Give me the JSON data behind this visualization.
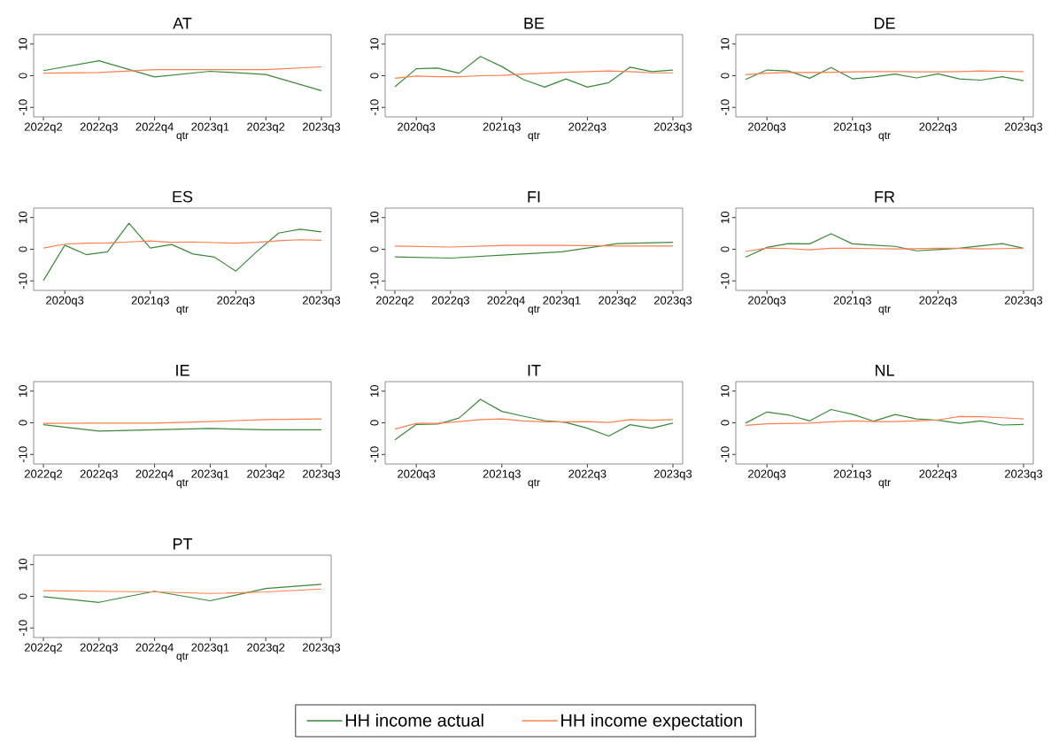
{
  "chart_data": [
    {
      "type": "line",
      "title": "AT",
      "xlabel": "qtr",
      "categories": [
        "2022q2",
        "2022q3",
        "2022q4",
        "2023q1",
        "2023q2",
        "2023q3"
      ],
      "ylim": [
        -13,
        13
      ],
      "yticks": [
        -10,
        0,
        10
      ],
      "series": [
        {
          "color": "#3a8a3a",
          "values": [
            1.6,
            4.7,
            -0.4,
            1.4,
            0.4,
            -4.7
          ]
        },
        {
          "color": "#ff7f50",
          "values": [
            0.8,
            1.0,
            1.9,
            1.9,
            1.9,
            2.8
          ]
        }
      ]
    },
    {
      "type": "line",
      "title": "BE",
      "xlabel": "qtr",
      "categories": [
        null,
        "2020q3",
        null,
        null,
        null,
        "2021q3",
        null,
        null,
        null,
        "2022q3",
        null,
        null,
        null,
        "2023q3"
      ],
      "ylim": [
        -13,
        13
      ],
      "yticks": [
        -10,
        0,
        10
      ],
      "series": [
        {
          "color": "#3a8a3a",
          "values": [
            -3.5,
            2.2,
            2.4,
            0.8,
            6.1,
            2.9,
            -1.2,
            -3.6,
            -1.0,
            -3.6,
            -2.2,
            2.7,
            1.3,
            1.8
          ]
        },
        {
          "color": "#ff7f50",
          "values": [
            -0.8,
            -0.1,
            -0.3,
            -0.3,
            0.0,
            0.1,
            0.5,
            0.8,
            1.1,
            1.3,
            1.5,
            1.3,
            0.9,
            0.9
          ]
        }
      ]
    },
    {
      "type": "line",
      "title": "DE",
      "xlabel": "qtr",
      "categories": [
        null,
        "2020q3",
        null,
        null,
        null,
        "2021q3",
        null,
        null,
        null,
        "2022q3",
        null,
        null,
        null,
        "2023q3"
      ],
      "ylim": [
        -13,
        13
      ],
      "yticks": [
        -10,
        0,
        10
      ],
      "series": [
        {
          "color": "#3a8a3a",
          "values": [
            -1.2,
            1.8,
            1.5,
            -0.8,
            2.6,
            -1.0,
            -0.4,
            0.5,
            -0.7,
            0.6,
            -1.0,
            -1.4,
            -0.3,
            -1.6
          ]
        },
        {
          "color": "#ff7f50",
          "values": [
            0.3,
            0.8,
            1.0,
            1.0,
            1.1,
            1.2,
            1.3,
            1.3,
            1.2,
            1.2,
            1.3,
            1.5,
            1.4,
            1.3
          ]
        }
      ]
    },
    {
      "type": "line",
      "title": "ES",
      "xlabel": "qtr",
      "categories": [
        null,
        "2020q3",
        null,
        null,
        null,
        "2021q3",
        null,
        null,
        null,
        "2022q3",
        null,
        null,
        null,
        "2023q3"
      ],
      "ylim": [
        -13,
        13
      ],
      "yticks": [
        -10,
        0,
        10
      ],
      "series": [
        {
          "color": "#3a8a3a",
          "values": [
            -9.9,
            1.3,
            -1.7,
            -0.8,
            8.2,
            0.4,
            1.5,
            -1.5,
            -2.5,
            -6.9,
            -0.6,
            5.1,
            6.3,
            5.5
          ]
        },
        {
          "color": "#ff7f50",
          "values": [
            0.4,
            1.6,
            1.9,
            2.0,
            2.3,
            2.6,
            2.2,
            2.3,
            2.1,
            1.9,
            2.2,
            2.7,
            3.0,
            2.8
          ]
        }
      ]
    },
    {
      "type": "line",
      "title": "FI",
      "xlabel": "qtr",
      "categories": [
        "2022q2",
        "2022q3",
        "2022q4",
        "2023q1",
        "2023q2",
        "2023q3"
      ],
      "ylim": [
        -13,
        13
      ],
      "yticks": [
        -10,
        0,
        10
      ],
      "series": [
        {
          "color": "#3a8a3a",
          "values": [
            -2.4,
            -2.8,
            -1.8,
            -0.8,
            1.8,
            2.2
          ]
        },
        {
          "color": "#ff7f50",
          "values": [
            1.0,
            0.7,
            1.2,
            1.2,
            1.0,
            1.0
          ]
        }
      ]
    },
    {
      "type": "line",
      "title": "FR",
      "xlabel": "qtr",
      "categories": [
        null,
        "2020q3",
        null,
        null,
        null,
        "2021q3",
        null,
        null,
        null,
        "2022q3",
        null,
        null,
        null,
        "2023q3"
      ],
      "ylim": [
        -13,
        13
      ],
      "yticks": [
        -10,
        0,
        10
      ],
      "series": [
        {
          "color": "#3a8a3a",
          "values": [
            -2.5,
            0.6,
            1.8,
            1.7,
            4.9,
            1.7,
            1.3,
            0.9,
            -0.5,
            -0.1,
            0.3,
            1.1,
            1.8,
            0.3
          ]
        },
        {
          "color": "#ff7f50",
          "values": [
            -0.7,
            0.4,
            0.2,
            -0.2,
            0.3,
            0.3,
            0.2,
            0.1,
            0.2,
            0.3,
            0.3,
            0.1,
            0.2,
            0.3
          ]
        }
      ]
    },
    {
      "type": "line",
      "title": "IE",
      "xlabel": "qtr",
      "categories": [
        "2022q2",
        "2022q3",
        "2022q4",
        "2023q1",
        "2023q2",
        "2023q3"
      ],
      "ylim": [
        -13,
        13
      ],
      "yticks": [
        -10,
        0,
        10
      ],
      "series": [
        {
          "color": "#3a8a3a",
          "values": [
            -0.6,
            -2.6,
            -2.2,
            -1.8,
            -2.2,
            -2.2
          ]
        },
        {
          "color": "#ff7f50",
          "values": [
            -0.2,
            -0.1,
            -0.1,
            0.4,
            1.0,
            1.2
          ]
        }
      ]
    },
    {
      "type": "line",
      "title": "IT",
      "xlabel": "qtr",
      "categories": [
        null,
        "2020q3",
        null,
        null,
        null,
        "2021q3",
        null,
        null,
        null,
        "2022q3",
        null,
        null,
        null,
        "2023q3"
      ],
      "ylim": [
        -13,
        13
      ],
      "yticks": [
        -10,
        0,
        10
      ],
      "series": [
        {
          "color": "#3a8a3a",
          "values": [
            -5.4,
            -0.5,
            -0.4,
            1.5,
            7.4,
            3.6,
            2.1,
            0.7,
            0.1,
            -1.7,
            -4.2,
            -0.6,
            -1.7,
            -0.1
          ]
        },
        {
          "color": "#ff7f50",
          "values": [
            -2.0,
            -0.2,
            -0.2,
            0.4,
            1.0,
            1.2,
            0.6,
            0.3,
            0.3,
            0.4,
            0.1,
            1.0,
            0.8,
            1.0
          ]
        }
      ]
    },
    {
      "type": "line",
      "title": "NL",
      "xlabel": "qtr",
      "categories": [
        null,
        "2020q3",
        null,
        null,
        null,
        "2021q3",
        null,
        null,
        null,
        "2022q3",
        null,
        null,
        null,
        "2023q3"
      ],
      "ylim": [
        -13,
        13
      ],
      "yticks": [
        -10,
        0,
        10
      ],
      "series": [
        {
          "color": "#3a8a3a",
          "values": [
            -0.1,
            3.4,
            2.5,
            0.6,
            4.2,
            2.7,
            0.5,
            2.6,
            1.2,
            0.8,
            -0.2,
            0.6,
            -0.7,
            -0.5
          ]
        },
        {
          "color": "#ff7f50",
          "values": [
            -0.8,
            -0.3,
            -0.2,
            -0.1,
            0.3,
            0.6,
            0.4,
            0.4,
            0.6,
            0.9,
            2.0,
            1.9,
            1.6,
            1.2
          ]
        }
      ]
    },
    {
      "type": "line",
      "title": "PT",
      "xlabel": "qtr",
      "categories": [
        "2022q2",
        "2022q3",
        "2022q4",
        "2023q1",
        "2023q2",
        "2023q3"
      ],
      "ylim": [
        -13,
        13
      ],
      "yticks": [
        -10,
        0,
        10
      ],
      "legend": "bottom",
      "series": [
        {
          "name": "HH income actual",
          "color": "#3a8a3a",
          "values": [
            -0.1,
            -1.9,
            1.6,
            -1.4,
            2.5,
            3.8
          ]
        },
        {
          "name": "HH income expectation",
          "color": "#ff7f50",
          "values": [
            1.8,
            1.6,
            1.4,
            0.9,
            1.4,
            2.3
          ]
        }
      ]
    }
  ]
}
